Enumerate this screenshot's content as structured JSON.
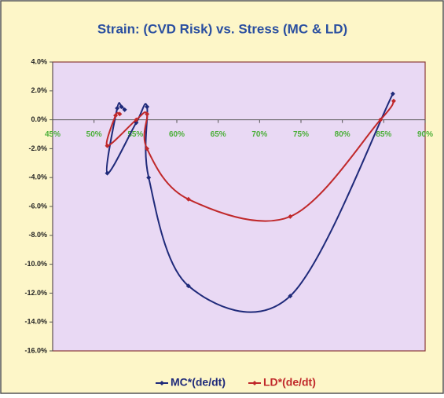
{
  "chart_data": {
    "type": "line",
    "title": "Strain: (CVD Risk) vs. Stress (MC & LD)",
    "smooth": true,
    "grid": false,
    "legend": "bottom",
    "xlim": [
      45,
      90
    ],
    "xticks": [
      {
        "value": 45,
        "label": "45%"
      },
      {
        "value": 50,
        "label": "50%"
      },
      {
        "value": 55,
        "label": "55%"
      },
      {
        "value": 60,
        "label": "60%"
      },
      {
        "value": 65,
        "label": "65%"
      },
      {
        "value": 70,
        "label": "70%"
      },
      {
        "value": 75,
        "label": "75%"
      },
      {
        "value": 80,
        "label": "80%"
      },
      {
        "value": 85,
        "label": "85%"
      },
      {
        "value": 90,
        "label": "90%"
      }
    ],
    "ylim": [
      -16,
      4
    ],
    "yticks": [
      {
        "value": 4,
        "label": "4.0%"
      },
      {
        "value": 2,
        "label": "2.0%"
      },
      {
        "value": 0,
        "label": "0.0%"
      },
      {
        "value": -2,
        "label": "-2.0%"
      },
      {
        "value": -4,
        "label": "-4.0%"
      },
      {
        "value": -6,
        "label": "-6.0%"
      },
      {
        "value": -8,
        "label": "-8.0%"
      },
      {
        "value": -10,
        "label": "-10.0%"
      },
      {
        "value": -12,
        "label": "-12.0%"
      },
      {
        "value": -14,
        "label": "-14.0%"
      },
      {
        "value": -16,
        "label": "-16.0%"
      }
    ],
    "series": [
      {
        "name": "MC*(de/dt)",
        "color": "#1f2a7a",
        "x": [
          53.7,
          53.3,
          52.8,
          51.6,
          55.1,
          56.4,
          56.6,
          61.4,
          73.7,
          86.1
        ],
        "values": [
          0.7,
          0.9,
          0.8,
          -3.7,
          -0.2,
          0.9,
          -4.0,
          -11.5,
          -12.2,
          1.8
        ]
      },
      {
        "name": "LD*(de/dt)",
        "color": "#c0282a",
        "x": [
          53.1,
          52.6,
          51.6,
          55.1,
          56.4,
          56.4,
          61.4,
          73.7,
          84.6,
          86.2
        ],
        "values": [
          0.4,
          0.3,
          -1.8,
          0.0,
          0.4,
          -2.0,
          -5.5,
          -6.7,
          0.0,
          1.3
        ]
      }
    ]
  }
}
